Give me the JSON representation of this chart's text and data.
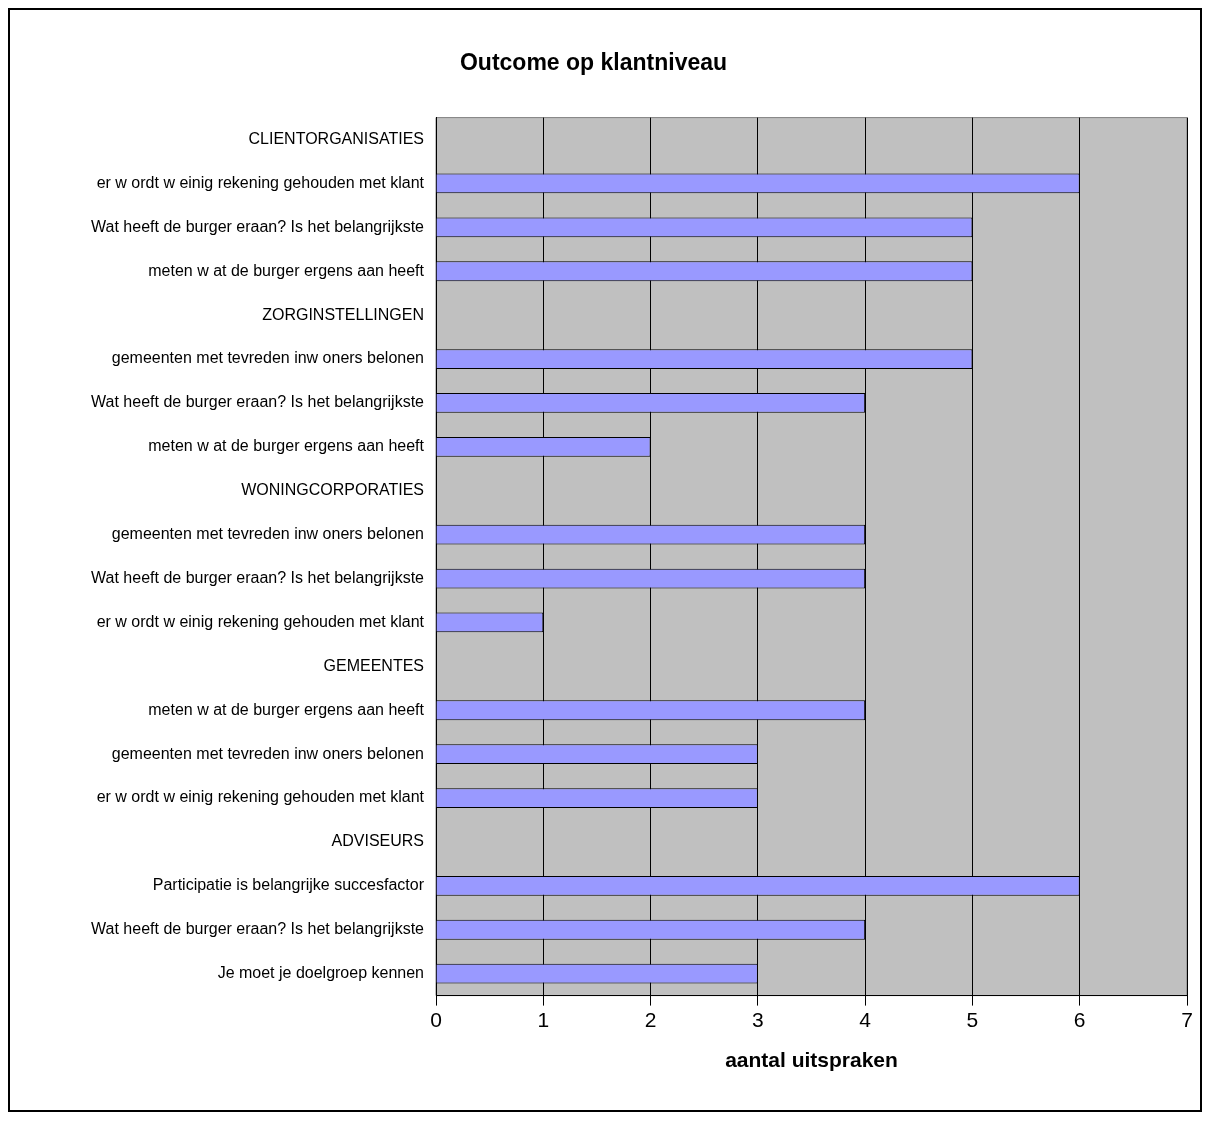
{
  "chart_data": {
    "type": "bar",
    "orientation": "horizontal",
    "title": "Outcome op klantniveau",
    "xlabel": "aantal uitspraken",
    "categories": [
      "CLIENTORGANISATIES",
      "er w ordt w einig rekening gehouden met klant",
      "Wat heeft de burger eraan? Is het belangrijkste",
      "meten w at de burger ergens aan heeft",
      "ZORGINSTELLINGEN",
      "gemeenten met tevreden inw oners belonen",
      "Wat heeft de burger eraan? Is het belangrijkste",
      "meten w at de burger ergens aan heeft",
      "WONINGCORPORATIES",
      "gemeenten met tevreden inw oners belonen",
      "Wat heeft de burger eraan? Is het belangrijkste",
      "er w ordt w einig rekening gehouden met klant",
      "GEMEENTES",
      "meten w at de burger ergens aan heeft",
      "gemeenten met tevreden inw oners belonen",
      "er w ordt w einig rekening gehouden met klant",
      "ADVISEURS",
      "Participatie is belangrijke succesfactor",
      "Wat heeft de burger eraan? Is het belangrijkste",
      "Je moet je doelgroep kennen"
    ],
    "values": [
      null,
      6,
      5,
      5,
      null,
      5,
      4,
      2,
      null,
      4,
      4,
      1,
      null,
      4,
      3,
      3,
      null,
      6,
      4,
      3
    ],
    "color": "#9999ff",
    "xlim": [
      0,
      7
    ],
    "xticks": [
      0,
      1,
      2,
      3,
      4,
      5,
      6,
      7
    ],
    "grid": "x",
    "legend": false
  }
}
